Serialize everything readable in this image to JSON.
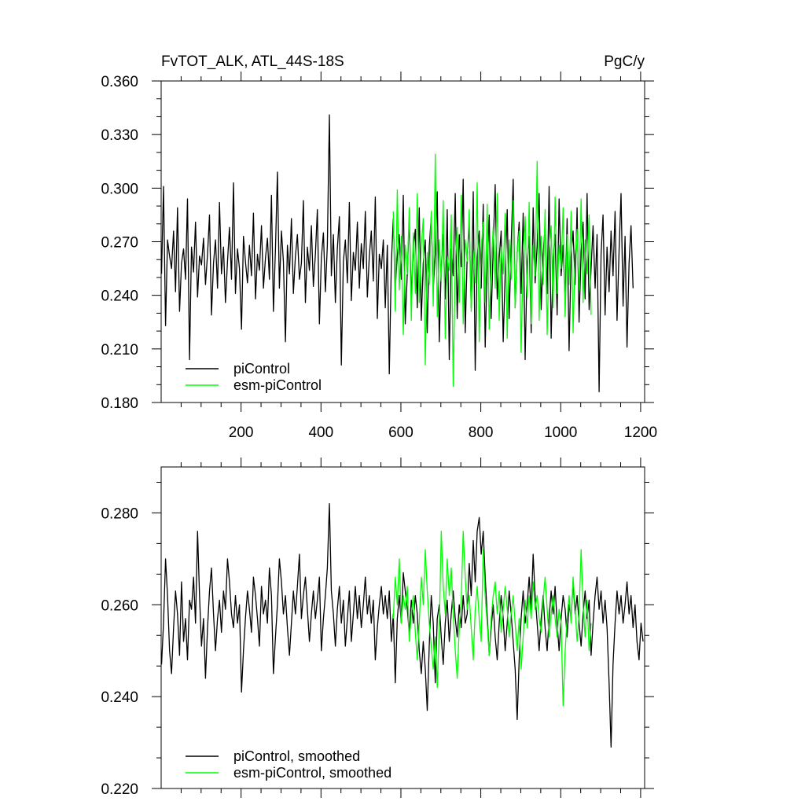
{
  "chart_data": [
    {
      "type": "line",
      "title": "FvTOT_ALK, ATL_44S-18S",
      "units": "PgC/y",
      "xlim": [
        0,
        1210
      ],
      "ylim": [
        0.18,
        0.36
      ],
      "xticks": [
        200,
        400,
        600,
        800,
        1000,
        1200
      ],
      "xtick_labels": [
        "200",
        "400",
        "600",
        "800",
        "1000",
        "1200"
      ],
      "yticks": [
        0.18,
        0.21,
        0.24,
        0.27,
        0.3,
        0.33,
        0.36
      ],
      "ytick_labels": [
        "0.180",
        "0.210",
        "0.240",
        "0.270",
        "0.300",
        "0.330",
        "0.360"
      ],
      "grid": false,
      "legend": "bottom-left",
      "series": [
        {
          "name": "piControl",
          "color": "#000000",
          "x_start": 1,
          "x_step": 5,
          "values": [
            0.252,
            0.301,
            0.223,
            0.271,
            0.262,
            0.255,
            0.276,
            0.242,
            0.289,
            0.231,
            0.258,
            0.266,
            0.249,
            0.294,
            0.204,
            0.267,
            0.253,
            0.281,
            0.239,
            0.262,
            0.257,
            0.272,
            0.246,
            0.263,
            0.285,
            0.229,
            0.258,
            0.271,
            0.244,
            0.292,
            0.252,
            0.267,
            0.236,
            0.259,
            0.278,
            0.249,
            0.303,
            0.241,
            0.266,
            0.255,
            0.221,
            0.273,
            0.259,
            0.247,
            0.268,
            0.251,
            0.286,
            0.238,
            0.263,
            0.254,
            0.279,
            0.244,
            0.261,
            0.272,
            0.249,
            0.296,
            0.231,
            0.266,
            0.309,
            0.244,
            0.276,
            0.259,
            0.214,
            0.268,
            0.252,
            0.283,
            0.241,
            0.262,
            0.274,
            0.249,
            0.258,
            0.293,
            0.236,
            0.267,
            0.254,
            0.279,
            0.245,
            0.263,
            0.288,
            0.224,
            0.261,
            0.275,
            0.242,
            0.268,
            0.341,
            0.251,
            0.274,
            0.236,
            0.266,
            0.284,
            0.201,
            0.259,
            0.271,
            0.247,
            0.292,
            0.237,
            0.264,
            0.254,
            0.281,
            0.244,
            0.269,
            0.255,
            0.287,
            0.239,
            0.262,
            0.276,
            0.248,
            0.295,
            0.227,
            0.263,
            0.255,
            0.271,
            0.233,
            0.268,
            0.196,
            0.258,
            0.283,
            0.244,
            0.262,
            0.274,
            0.249,
            0.296,
            0.224,
            0.252,
            0.283,
            0.239,
            0.266,
            0.277,
            0.233,
            0.289,
            0.226,
            0.258,
            0.271,
            0.219,
            0.267,
            0.284,
            0.243,
            0.263,
            0.298,
            0.214,
            0.256,
            0.274,
            0.238,
            0.288,
            0.204,
            0.266,
            0.251,
            0.297,
            0.227,
            0.274,
            0.256,
            0.305,
            0.219,
            0.262,
            0.279,
            0.233,
            0.298,
            0.198,
            0.261,
            0.276,
            0.244,
            0.291,
            0.211,
            0.257,
            0.285,
            0.227,
            0.267,
            0.302,
            0.238,
            0.261,
            0.276,
            0.214,
            0.252,
            0.288,
            0.227,
            0.268,
            0.305,
            0.233,
            0.264,
            0.281,
            0.241,
            0.286,
            0.204,
            0.258,
            0.273,
            0.219,
            0.289,
            0.247,
            0.268,
            0.297,
            0.232,
            0.263,
            0.279,
            0.241,
            0.301,
            0.216,
            0.259,
            0.274,
            0.229,
            0.294,
            0.251,
            0.268,
            0.237,
            0.283,
            0.209,
            0.262,
            0.276,
            0.246,
            0.289,
            0.225,
            0.264,
            0.281,
            0.238,
            0.297,
            0.232,
            0.255,
            0.279,
            0.244,
            0.274,
            0.186,
            0.263,
            0.285,
            0.229,
            0.267,
            0.242,
            0.276,
            0.251,
            0.287,
            0.226,
            0.265,
            0.297,
            0.234,
            0.273,
            0.211,
            0.258,
            0.279,
            0.244
          ]
        },
        {
          "name": "esm-piControl",
          "color": "#00ff00",
          "x_start": 581,
          "x_step": 5,
          "values": [
            0.287,
            0.231,
            0.299,
            0.243,
            0.273,
            0.218,
            0.268,
            0.252,
            0.289,
            0.226,
            0.275,
            0.241,
            0.297,
            0.236,
            0.267,
            0.283,
            0.201,
            0.264,
            0.246,
            0.287,
            0.234,
            0.319,
            0.228,
            0.271,
            0.248,
            0.293,
            0.216,
            0.262,
            0.254,
            0.285,
            0.189,
            0.258,
            0.278,
            0.236,
            0.296,
            0.224,
            0.271,
            0.259,
            0.288,
            0.231,
            0.265,
            0.247,
            0.303,
            0.214,
            0.266,
            0.281,
            0.236,
            0.291,
            0.221,
            0.258,
            0.278,
            0.244,
            0.297,
            0.226,
            0.267,
            0.252,
            0.286,
            0.216,
            0.271,
            0.249,
            0.293,
            0.233,
            0.264,
            0.276,
            0.208,
            0.262,
            0.284,
            0.239,
            0.292,
            0.224,
            0.268,
            0.251,
            0.315,
            0.226,
            0.273,
            0.246,
            0.288,
            0.218,
            0.264,
            0.279,
            0.233,
            0.295,
            0.241,
            0.268,
            0.255,
            0.289,
            0.228,
            0.274,
            0.246,
            0.287,
            0.219,
            0.262,
            0.277,
            0.243,
            0.294,
            0.236,
            0.271,
            0.252,
            0.285,
            0.229
          ]
        }
      ]
    },
    {
      "type": "line",
      "title": "",
      "xlim": [
        0,
        1210
      ],
      "ylim": [
        0.22,
        0.29
      ],
      "xticks": [
        200,
        400,
        600,
        800,
        1000,
        1200
      ],
      "yticks": [
        0.22,
        0.24,
        0.26,
        0.28
      ],
      "ytick_labels": [
        "0.220",
        "0.240",
        "0.260",
        "0.280"
      ],
      "grid": false,
      "legend": "bottom-left",
      "series": [
        {
          "name": "piControl, smoothed",
          "color": "#000000",
          "x_start": 1,
          "x_step": 5,
          "values": [
            0.247,
            0.256,
            0.27,
            0.262,
            0.25,
            0.245,
            0.255,
            0.263,
            0.258,
            0.249,
            0.265,
            0.252,
            0.257,
            0.248,
            0.261,
            0.259,
            0.266,
            0.256,
            0.276,
            0.262,
            0.251,
            0.257,
            0.244,
            0.255,
            0.263,
            0.268,
            0.258,
            0.25,
            0.257,
            0.261,
            0.254,
            0.263,
            0.259,
            0.27,
            0.265,
            0.258,
            0.255,
            0.262,
            0.256,
            0.26,
            0.241,
            0.25,
            0.257,
            0.263,
            0.259,
            0.254,
            0.266,
            0.262,
            0.257,
            0.251,
            0.264,
            0.258,
            0.261,
            0.256,
            0.268,
            0.262,
            0.245,
            0.253,
            0.26,
            0.27,
            0.265,
            0.258,
            0.262,
            0.255,
            0.249,
            0.256,
            0.263,
            0.258,
            0.264,
            0.271,
            0.257,
            0.262,
            0.266,
            0.259,
            0.252,
            0.258,
            0.263,
            0.257,
            0.261,
            0.266,
            0.25,
            0.257,
            0.262,
            0.268,
            0.282,
            0.263,
            0.258,
            0.251,
            0.259,
            0.264,
            0.256,
            0.261,
            0.251,
            0.257,
            0.263,
            0.252,
            0.258,
            0.264,
            0.257,
            0.262,
            0.255,
            0.26,
            0.266,
            0.258,
            0.262,
            0.256,
            0.261,
            0.248,
            0.255,
            0.26,
            0.264,
            0.258,
            0.262,
            0.257,
            0.263,
            0.252,
            0.258,
            0.243,
            0.257,
            0.262,
            0.256,
            0.267,
            0.263,
            0.259,
            0.254,
            0.261,
            0.256,
            0.262,
            0.258,
            0.25,
            0.245,
            0.252,
            0.246,
            0.237,
            0.251,
            0.262,
            0.256,
            0.243,
            0.257,
            0.26,
            0.253,
            0.247,
            0.256,
            0.261,
            0.252,
            0.258,
            0.263,
            0.257,
            0.253,
            0.26,
            0.255,
            0.262,
            0.256,
            0.258,
            0.269,
            0.262,
            0.274,
            0.265,
            0.276,
            0.279,
            0.271,
            0.276,
            0.266,
            0.258,
            0.249,
            0.255,
            0.26,
            0.253,
            0.248,
            0.256,
            0.262,
            0.257,
            0.25,
            0.256,
            0.263,
            0.258,
            0.252,
            0.246,
            0.235,
            0.248,
            0.257,
            0.263,
            0.256,
            0.26,
            0.266,
            0.259,
            0.271,
            0.262,
            0.256,
            0.25,
            0.257,
            0.262,
            0.255,
            0.25,
            0.257,
            0.263,
            0.258,
            0.264,
            0.256,
            0.25,
            0.257,
            0.262,
            0.259,
            0.253,
            0.26,
            0.257,
            0.265,
            0.258,
            0.262,
            0.256,
            0.251,
            0.258,
            0.263,
            0.257,
            0.261,
            0.249,
            0.256,
            0.262,
            0.266,
            0.259,
            0.263,
            0.256,
            0.261,
            0.255,
            0.243,
            0.229,
            0.247,
            0.256,
            0.263,
            0.258,
            0.262,
            0.256,
            0.26,
            0.265,
            0.258,
            0.262,
            0.255,
            0.26,
            0.252,
            0.248,
            0.256,
            0.252
          ]
        },
        {
          "name": "esm-piControl, smoothed",
          "color": "#00ff00",
          "x_start": 581,
          "x_step": 5,
          "values": [
            0.257,
            0.266,
            0.26,
            0.27,
            0.256,
            0.262,
            0.259,
            0.264,
            0.252,
            0.258,
            0.262,
            0.254,
            0.248,
            0.256,
            0.266,
            0.26,
            0.272,
            0.263,
            0.256,
            0.251,
            0.246,
            0.253,
            0.242,
            0.255,
            0.276,
            0.264,
            0.258,
            0.27,
            0.262,
            0.268,
            0.258,
            0.25,
            0.244,
            0.255,
            0.261,
            0.276,
            0.266,
            0.259,
            0.262,
            0.255,
            0.248,
            0.259,
            0.264,
            0.257,
            0.252,
            0.272,
            0.262,
            0.256,
            0.249,
            0.257,
            0.262,
            0.265,
            0.258,
            0.263,
            0.254,
            0.259,
            0.264,
            0.259,
            0.253,
            0.258,
            0.262,
            0.256,
            0.25,
            0.257,
            0.246,
            0.253,
            0.261,
            0.255,
            0.262,
            0.257,
            0.265,
            0.259,
            0.262,
            0.257,
            0.254,
            0.261,
            0.266,
            0.259,
            0.253,
            0.258,
            0.262,
            0.257,
            0.253,
            0.259,
            0.256,
            0.238,
            0.25,
            0.257,
            0.262,
            0.256,
            0.266,
            0.259,
            0.252,
            0.258,
            0.272,
            0.26,
            0.253,
            0.261,
            0.25,
            0.256
          ]
        }
      ]
    }
  ]
}
